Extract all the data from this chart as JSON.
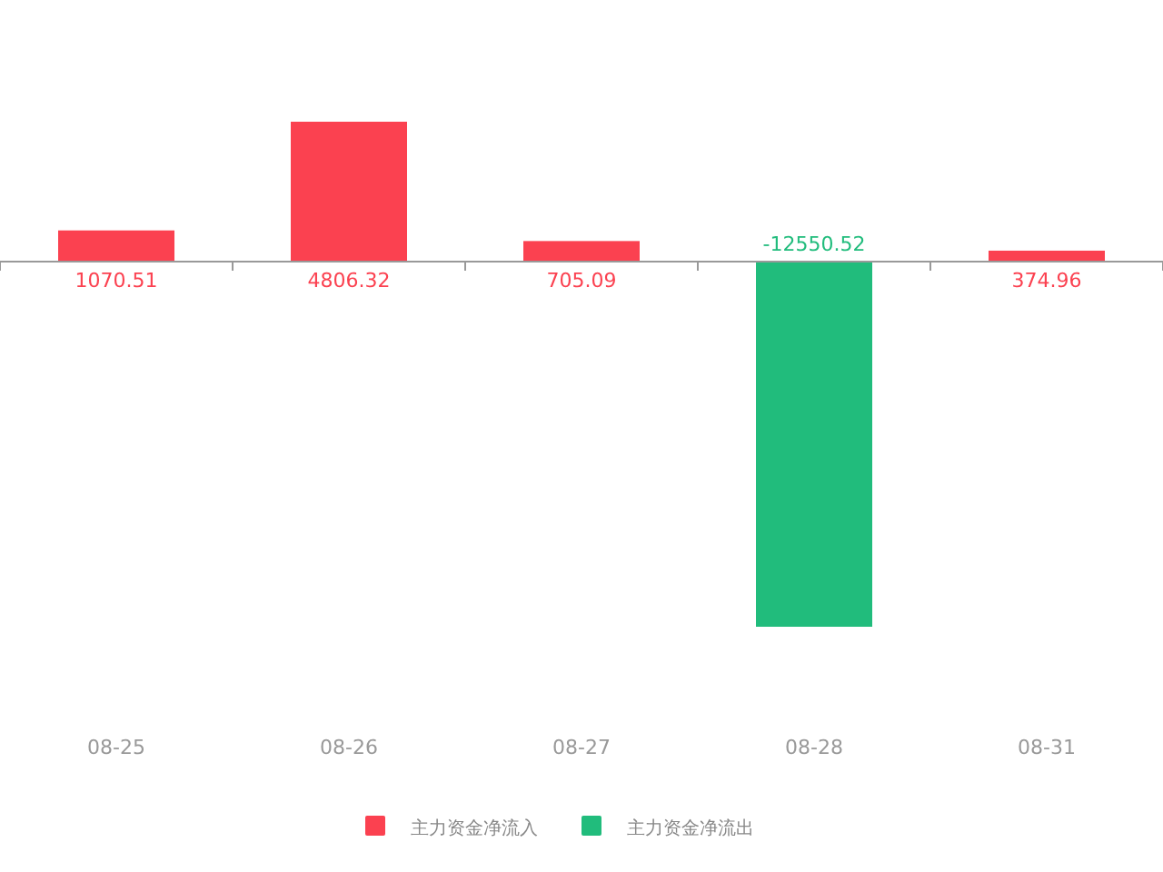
{
  "chart_data": {
    "type": "bar",
    "categories": [
      "08-25",
      "08-26",
      "08-27",
      "08-28",
      "08-31"
    ],
    "series": [
      {
        "name": "主力资金净流入",
        "color": "#fb4150",
        "values": [
          1070.51,
          4806.32,
          705.09,
          null,
          374.96
        ]
      },
      {
        "name": "主力资金净流出",
        "color": "#21bc7c",
        "values": [
          null,
          null,
          null,
          -12550.52,
          null
        ]
      }
    ],
    "data_labels": true,
    "legend": "bottom"
  }
}
